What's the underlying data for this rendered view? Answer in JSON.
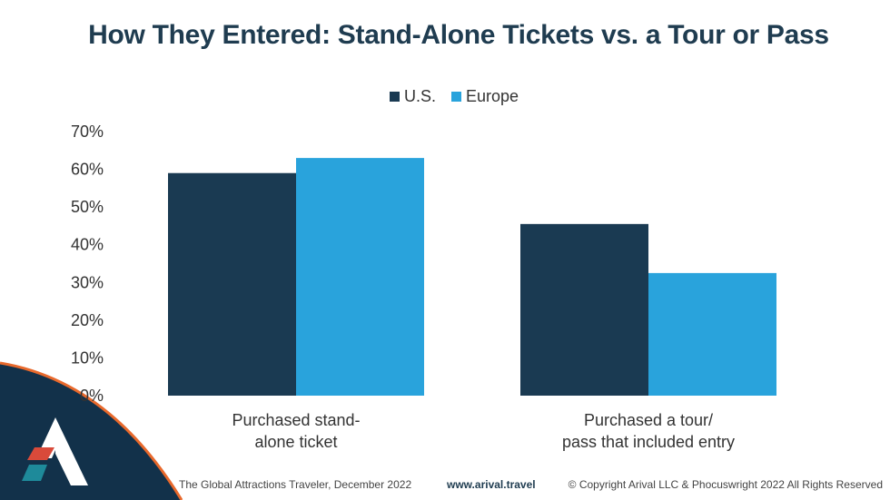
{
  "title": "How They Entered: Stand-Alone Tickets vs. a Tour or Pass",
  "colors": {
    "us": "#1a3a52",
    "europe": "#29a3dc",
    "title": "#1f3c50",
    "accent_orange": "#e8692c",
    "accent_red": "#d94a3a",
    "accent_teal": "#1e8a9a"
  },
  "chart_data": {
    "type": "bar",
    "categories": [
      "Purchased stand-alone ticket",
      "Purchased a tour/pass that included entry"
    ],
    "category_label_lines": [
      [
        "Purchased stand-",
        "alone ticket"
      ],
      [
        "Purchased a tour/",
        "pass that included entry"
      ]
    ],
    "series": [
      {
        "name": "U.S.",
        "values": [
          59,
          45.5
        ]
      },
      {
        "name": "Europe",
        "values": [
          63,
          32.5
        ]
      }
    ],
    "yticks": [
      "0%",
      "10%",
      "20%",
      "30%",
      "40%",
      "50%",
      "60%",
      "70%"
    ],
    "ylim": [
      0,
      70
    ],
    "legend_position": "top-center",
    "grid": false
  },
  "footer": {
    "source": "The Global Attractions Traveler, December 2022",
    "website": "www.arival.travel",
    "copyright": "© Copyright Arival LLC & Phocuswright 2022 All Rights Reserved"
  }
}
